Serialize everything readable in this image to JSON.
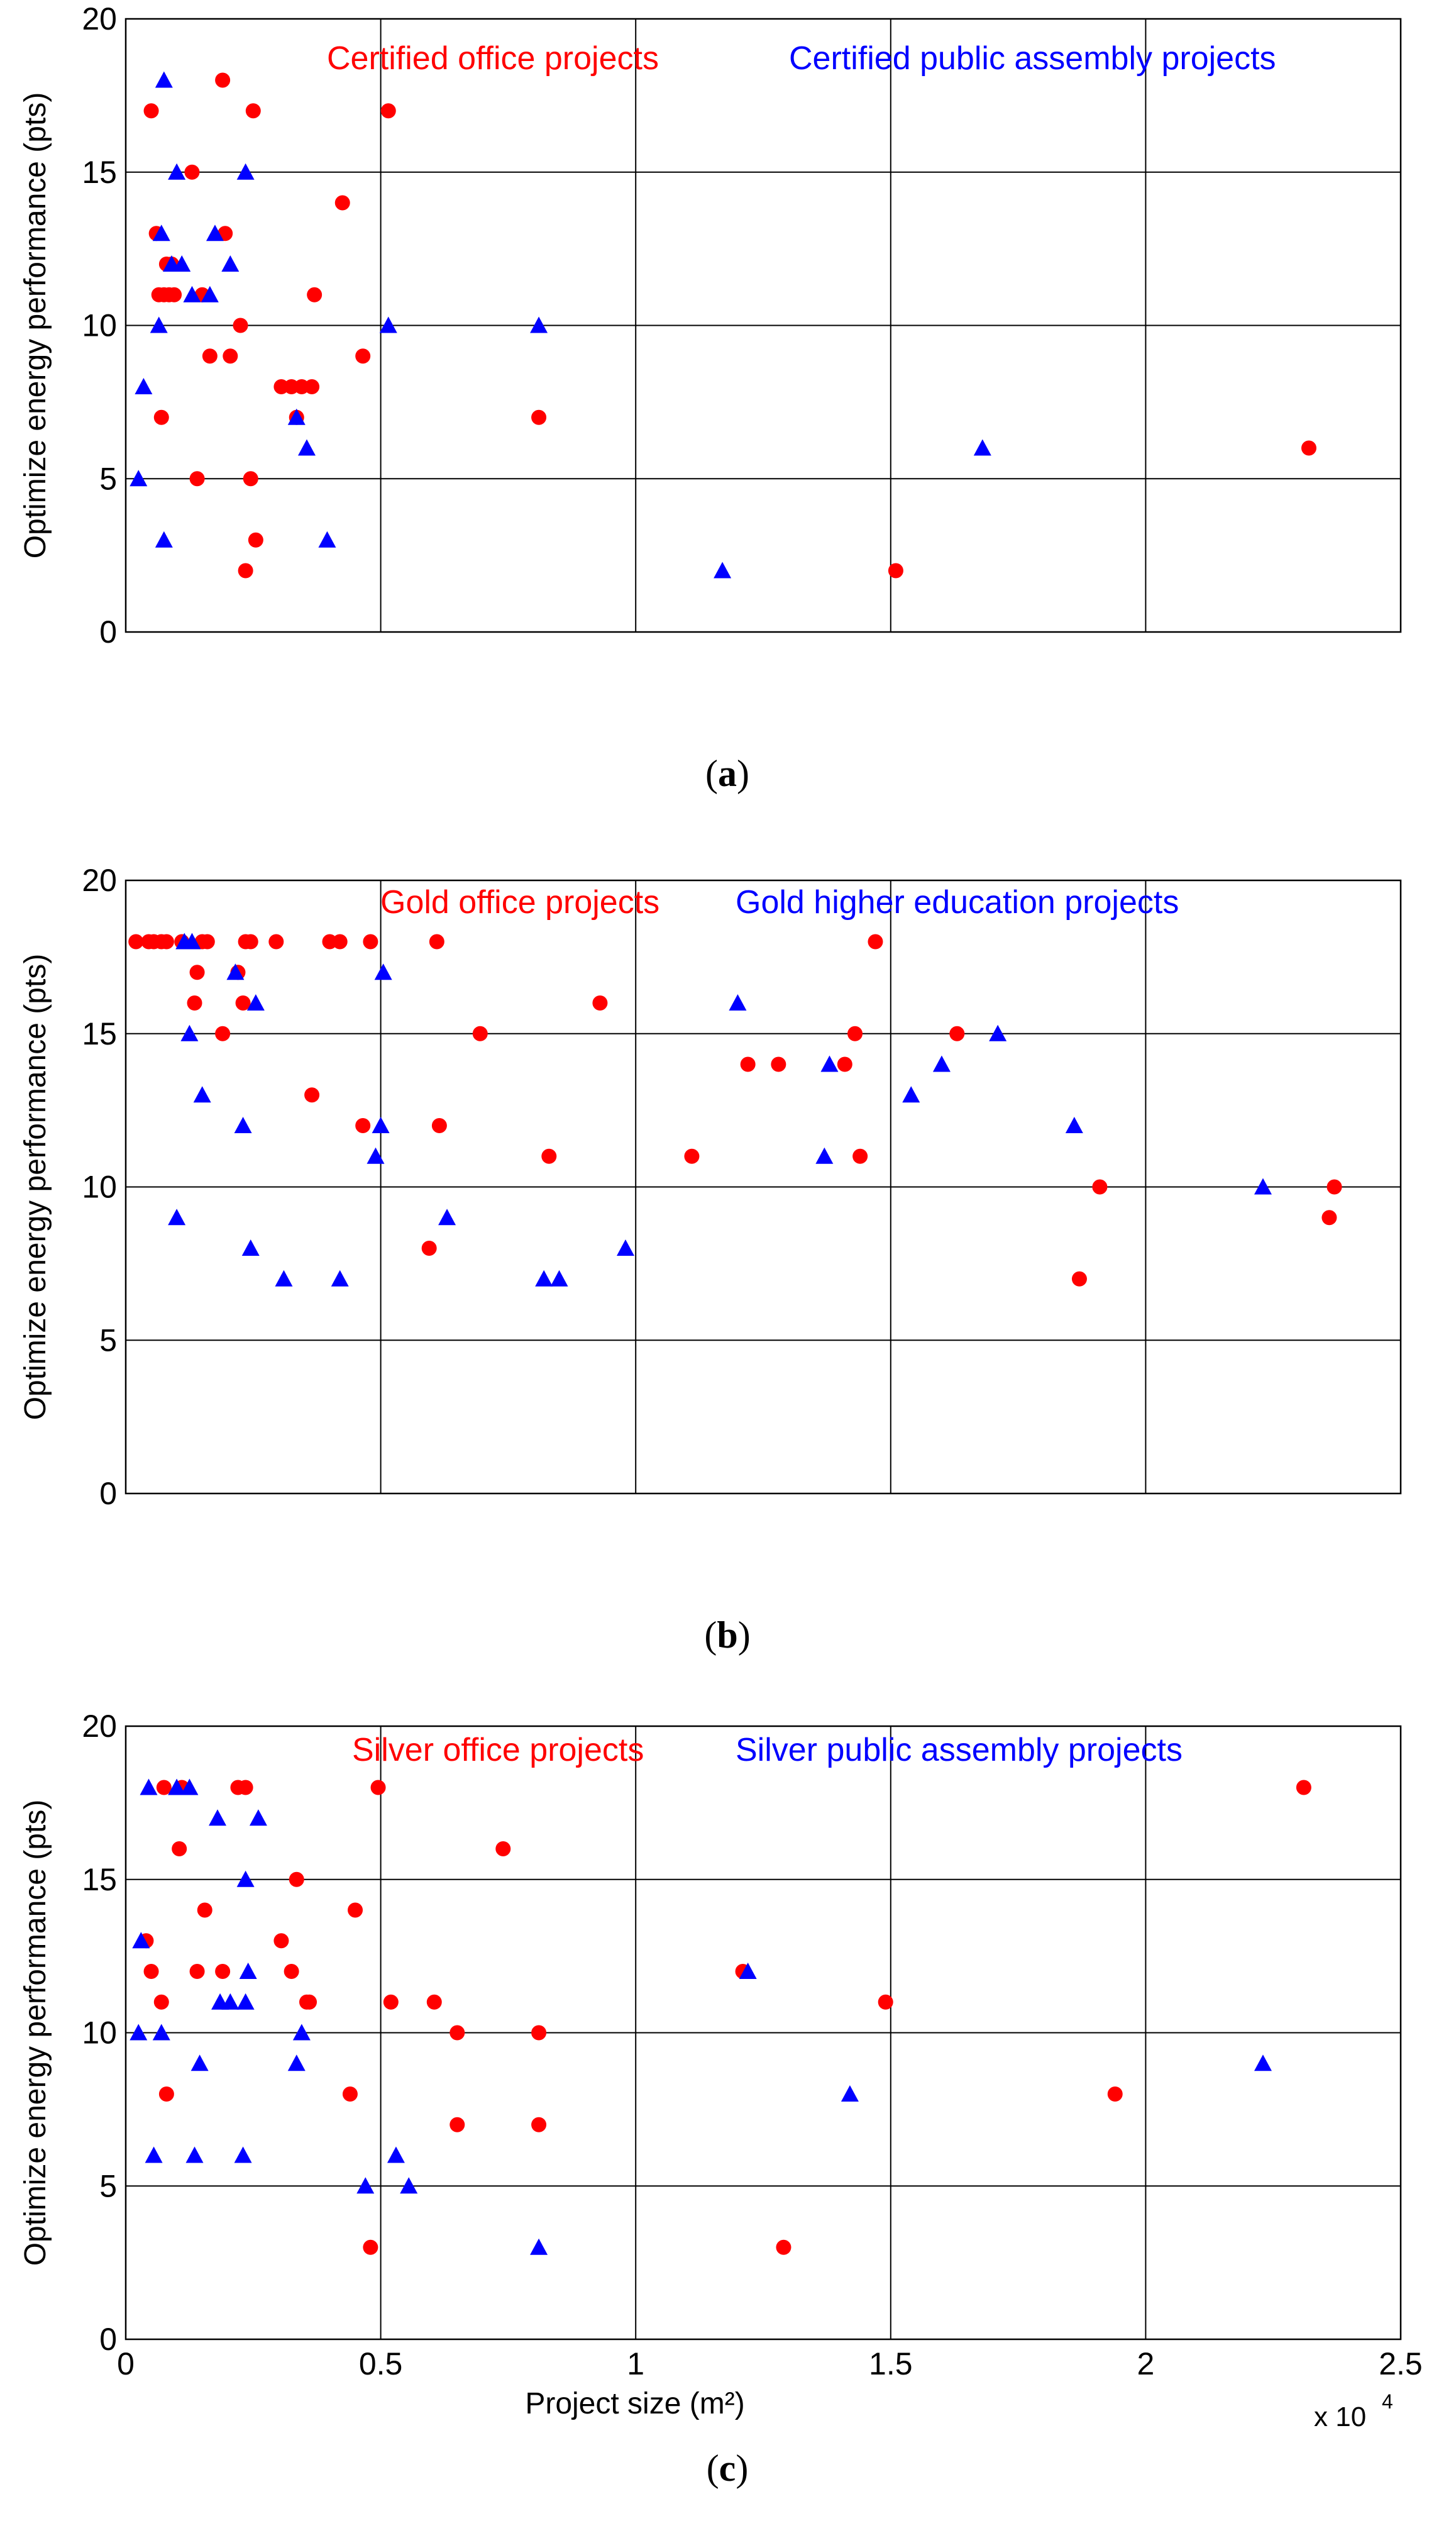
{
  "chart_data": [
    {
      "type": "scatter",
      "panel_label": "a",
      "caption_text": "(a)",
      "xlabel": "",
      "ylabel": "Optimize energy performance (pts)",
      "xlim": [
        0,
        25000
      ],
      "ylim": [
        0,
        20
      ],
      "xticks": [
        0,
        5000,
        10000,
        15000,
        20000,
        25000
      ],
      "xtick_labels": [],
      "yticks": [
        0,
        5,
        10,
        15,
        20
      ],
      "ytick_labels": [
        "0",
        "5",
        "10",
        "15",
        "20"
      ],
      "x_multiplier_label": "",
      "grid": true,
      "legend": "top",
      "series": [
        {
          "name": "Certified office projects",
          "marker": "circle",
          "color": "#ff0000",
          "points": [
            [
              500,
              17
            ],
            [
              600,
              13
            ],
            [
              650,
              11
            ],
            [
              700,
              7
            ],
            [
              750,
              11
            ],
            [
              800,
              12
            ],
            [
              850,
              11
            ],
            [
              900,
              12
            ],
            [
              950,
              11
            ],
            [
              1300,
              15
            ],
            [
              1400,
              5
            ],
            [
              1500,
              11
            ],
            [
              1650,
              9
            ],
            [
              1900,
              18
            ],
            [
              1950,
              13
            ],
            [
              2050,
              9
            ],
            [
              2250,
              10
            ],
            [
              2350,
              2
            ],
            [
              2450,
              5
            ],
            [
              2500,
              17
            ],
            [
              2550,
              3
            ],
            [
              3050,
              8
            ],
            [
              3250,
              8
            ],
            [
              3350,
              7
            ],
            [
              3450,
              8
            ],
            [
              3650,
              8
            ],
            [
              3700,
              11
            ],
            [
              4250,
              14
            ],
            [
              4650,
              9
            ],
            [
              5150,
              17
            ],
            [
              8100,
              7
            ],
            [
              15100,
              2
            ],
            [
              23200,
              6
            ]
          ]
        },
        {
          "name": "Certified public assembly projects",
          "marker": "triangle",
          "color": "#0000ff",
          "points": [
            [
              250,
              5
            ],
            [
              350,
              8
            ],
            [
              650,
              10
            ],
            [
              700,
              13
            ],
            [
              750,
              18
            ],
            [
              750,
              3
            ],
            [
              900,
              12
            ],
            [
              1000,
              15
            ],
            [
              1100,
              12
            ],
            [
              1300,
              11
            ],
            [
              1650,
              11
            ],
            [
              1750,
              13
            ],
            [
              2050,
              12
            ],
            [
              2350,
              15
            ],
            [
              3350,
              7
            ],
            [
              3550,
              6
            ],
            [
              3950,
              3
            ],
            [
              5150,
              10
            ],
            [
              8100,
              10
            ],
            [
              11700,
              2
            ],
            [
              16800,
              6
            ]
          ]
        }
      ]
    },
    {
      "type": "scatter",
      "panel_label": "b",
      "caption_text": "(b)",
      "xlabel": "",
      "ylabel": "Optimize energy performance (pts)",
      "xlim": [
        0,
        25000
      ],
      "ylim": [
        0,
        20
      ],
      "xticks": [
        0,
        5000,
        10000,
        15000,
        20000,
        25000
      ],
      "xtick_labels": [],
      "yticks": [
        0,
        5,
        10,
        15,
        20
      ],
      "ytick_labels": [
        "0",
        "5",
        "10",
        "15",
        "20"
      ],
      "x_multiplier_label": "",
      "grid": true,
      "legend": "top",
      "series": [
        {
          "name": "Gold office projects",
          "marker": "circle",
          "color": "#ff0000",
          "points": [
            [
              200,
              18
            ],
            [
              450,
              18
            ],
            [
              550,
              18
            ],
            [
              700,
              18
            ],
            [
              800,
              18
            ],
            [
              1100,
              18
            ],
            [
              1350,
              16
            ],
            [
              1400,
              17
            ],
            [
              1500,
              18
            ],
            [
              1600,
              18
            ],
            [
              1900,
              15
            ],
            [
              2200,
              17
            ],
            [
              2300,
              16
            ],
            [
              2350,
              18
            ],
            [
              2450,
              18
            ],
            [
              2950,
              18
            ],
            [
              3650,
              13
            ],
            [
              4000,
              18
            ],
            [
              4200,
              18
            ],
            [
              4650,
              12
            ],
            [
              4800,
              18
            ],
            [
              5950,
              8
            ],
            [
              6150,
              12
            ],
            [
              6100,
              18
            ],
            [
              6950,
              15
            ],
            [
              8300,
              11
            ],
            [
              9300,
              16
            ],
            [
              11100,
              11
            ],
            [
              12200,
              14
            ],
            [
              12800,
              14
            ],
            [
              14100,
              14
            ],
            [
              14300,
              15
            ],
            [
              14400,
              11
            ],
            [
              14700,
              18
            ],
            [
              16300,
              15
            ],
            [
              18700,
              7
            ],
            [
              19100,
              10
            ],
            [
              23600,
              9
            ],
            [
              23700,
              10
            ]
          ]
        },
        {
          "name": "Gold higher education projects",
          "marker": "triangle",
          "color": "#0000ff",
          "points": [
            [
              1000,
              9
            ],
            [
              1150,
              18
            ],
            [
              1250,
              15
            ],
            [
              1300,
              18
            ],
            [
              1500,
              13
            ],
            [
              2150,
              17
            ],
            [
              2300,
              12
            ],
            [
              2450,
              8
            ],
            [
              2550,
              16
            ],
            [
              3100,
              7
            ],
            [
              4200,
              7
            ],
            [
              4900,
              11
            ],
            [
              5000,
              12
            ],
            [
              5050,
              17
            ],
            [
              6300,
              9
            ],
            [
              8200,
              7
            ],
            [
              8500,
              7
            ],
            [
              9800,
              8
            ],
            [
              12000,
              16
            ],
            [
              13700,
              11
            ],
            [
              13800,
              14
            ],
            [
              15400,
              13
            ],
            [
              16000,
              14
            ],
            [
              17100,
              15
            ],
            [
              18600,
              12
            ],
            [
              22300,
              10
            ]
          ]
        }
      ]
    },
    {
      "type": "scatter",
      "panel_label": "c",
      "caption_text": "(c)",
      "xlabel": "Project size (m²)",
      "ylabel": "Optimize energy performance (pts)",
      "xlim": [
        0,
        25000
      ],
      "ylim": [
        0,
        20
      ],
      "xticks": [
        0,
        5000,
        10000,
        15000,
        20000,
        25000
      ],
      "xtick_labels": [
        "0",
        "0.5",
        "1",
        "1.5",
        "2",
        "2.5"
      ],
      "yticks": [
        0,
        5,
        10,
        15,
        20
      ],
      "ytick_labels": [
        "0",
        "5",
        "10",
        "15",
        "20"
      ],
      "x_multiplier_label": "x 10",
      "x_multiplier_exponent": "4",
      "grid": true,
      "legend": "top",
      "series": [
        {
          "name": "Silver office projects",
          "marker": "circle",
          "color": "#ff0000",
          "points": [
            [
              400,
              13
            ],
            [
              500,
              12
            ],
            [
              700,
              11
            ],
            [
              750,
              18
            ],
            [
              800,
              8
            ],
            [
              1050,
              16
            ],
            [
              1100,
              18
            ],
            [
              1400,
              12
            ],
            [
              1550,
              14
            ],
            [
              1900,
              12
            ],
            [
              2200,
              18
            ],
            [
              2350,
              18
            ],
            [
              3050,
              13
            ],
            [
              3250,
              12
            ],
            [
              3350,
              15
            ],
            [
              3550,
              11
            ],
            [
              3600,
              11
            ],
            [
              4400,
              8
            ],
            [
              4500,
              14
            ],
            [
              4800,
              3
            ],
            [
              4950,
              18
            ],
            [
              5200,
              11
            ],
            [
              6050,
              11
            ],
            [
              6500,
              7
            ],
            [
              6500,
              10
            ],
            [
              7400,
              16
            ],
            [
              8100,
              7
            ],
            [
              8100,
              10
            ],
            [
              12100,
              12
            ],
            [
              12900,
              3
            ],
            [
              14900,
              11
            ],
            [
              19400,
              8
            ],
            [
              23100,
              18
            ]
          ]
        },
        {
          "name": "Silver public assembly projects",
          "marker": "triangle",
          "color": "#0000ff",
          "points": [
            [
              250,
              10
            ],
            [
              300,
              13
            ],
            [
              450,
              18
            ],
            [
              550,
              6
            ],
            [
              700,
              10
            ],
            [
              1000,
              18
            ],
            [
              1250,
              18
            ],
            [
              1350,
              6
            ],
            [
              1450,
              9
            ],
            [
              1800,
              17
            ],
            [
              1850,
              11
            ],
            [
              2050,
              11
            ],
            [
              2300,
              6
            ],
            [
              2350,
              11
            ],
            [
              2350,
              15
            ],
            [
              2400,
              12
            ],
            [
              2600,
              17
            ],
            [
              3350,
              9
            ],
            [
              3450,
              10
            ],
            [
              4700,
              5
            ],
            [
              5300,
              6
            ],
            [
              5550,
              5
            ],
            [
              8100,
              3
            ],
            [
              12200,
              12
            ],
            [
              14200,
              8
            ],
            [
              22300,
              9
            ]
          ]
        }
      ]
    }
  ]
}
